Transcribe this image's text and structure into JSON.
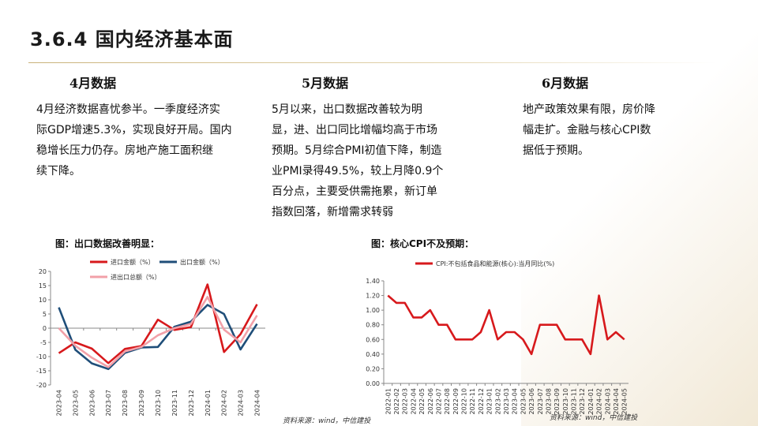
{
  "slide": {
    "title": "3.6.4 国内经济基本面"
  },
  "columns": [
    {
      "heading": "4月数据",
      "lines": [
        "4月经济数据喜忧参半。一季度经济实",
        "际GDP增速5.3%，实现良好开局。国内",
        "稳增长压力仍存。房地产施工面积继",
        "续下降。"
      ]
    },
    {
      "heading": "5月数据",
      "lines": [
        "5月以来，出口数据改善较为明",
        "显，进、出口同比增幅均高于市场",
        "预期。5月综合PMI初值下降，制造",
        "业PMI录得49.5%，较上月降0.9个",
        "百分点，主要受供需拖累，新订单",
        "指数回落，新增需求转弱"
      ]
    },
    {
      "heading": "6月数据",
      "lines": [
        "地产政策效果有限，房价降",
        "幅走扩。金融与核心CPI数",
        "据低于预期。"
      ]
    }
  ],
  "charts": {
    "left_title": "图：出口数据改善明显：",
    "right_title": "图：核心CPI不及预期：",
    "left_source": "资料来源：wind，中信建投",
    "right_source": "资料来源：wind，中信建投"
  },
  "chart_data": [
    {
      "type": "line",
      "title": "",
      "categories": [
        "2023-04",
        "2023-05",
        "2023-06",
        "2023-07",
        "2023-08",
        "2023-09",
        "2023-10",
        "2023-11",
        "2023-12",
        "2024-01",
        "2024-02",
        "2024-03",
        "2024-04"
      ],
      "ylim": [
        -20,
        20
      ],
      "yticks": [
        "20",
        "15",
        "10",
        "5",
        "0",
        "-5",
        "-10",
        "-15",
        "-20"
      ],
      "grid": false,
      "series": [
        {
          "name": "进口金额（%）",
          "color": "#d7191c",
          "values": [
            -8.8,
            -5.0,
            -7.2,
            -12.3,
            -7.3,
            -6.3,
            3.0,
            -0.6,
            0.4,
            15.4,
            -8.4,
            -2.1,
            8.4
          ]
        },
        {
          "name": "出口金额（%）",
          "color": "#1f4e79",
          "values": [
            7.3,
            -7.6,
            -12.4,
            -14.4,
            -8.7,
            -6.8,
            -6.6,
            0.5,
            2.3,
            8.2,
            5.0,
            -7.5,
            1.5
          ]
        },
        {
          "name": "进出口总额（%）",
          "color": "#f2a0a8",
          "values": [
            0.0,
            -6.2,
            -10.4,
            -13.7,
            -8.2,
            -6.6,
            -2.5,
            0.0,
            1.5,
            11.0,
            -0.5,
            -5.0,
            4.5
          ]
        }
      ]
    },
    {
      "type": "line",
      "title": "",
      "categories": [
        "2022-01",
        "2022-02",
        "2022-03",
        "2022-04",
        "2022-05",
        "2022-06",
        "2022-07",
        "2022-08",
        "2022-09",
        "2022-10",
        "2022-11",
        "2022-12",
        "2023-01",
        "2023-02",
        "2023-03",
        "2023-04",
        "2023-05",
        "2023-06",
        "2023-07",
        "2023-08",
        "2023-09",
        "2023-10",
        "2023-11",
        "2023-12",
        "2024-01",
        "2024-02",
        "2024-03",
        "2024-04",
        "2024-05"
      ],
      "ylim": [
        0,
        1.4
      ],
      "yticks": [
        "1.40",
        "1.20",
        "1.00",
        "0.80",
        "0.60",
        "0.40",
        "0.20",
        "0.00"
      ],
      "grid": false,
      "series": [
        {
          "name": "CPI:不包括食品和能源(核心):当月同比(%)",
          "color": "#d7191c",
          "values": [
            1.2,
            1.1,
            1.1,
            0.9,
            0.9,
            1.0,
            0.8,
            0.8,
            0.6,
            0.6,
            0.6,
            0.7,
            1.0,
            0.6,
            0.7,
            0.7,
            0.6,
            0.4,
            0.8,
            0.8,
            0.8,
            0.6,
            0.6,
            0.6,
            0.4,
            1.2,
            0.6,
            0.7,
            0.6
          ]
        }
      ]
    }
  ]
}
